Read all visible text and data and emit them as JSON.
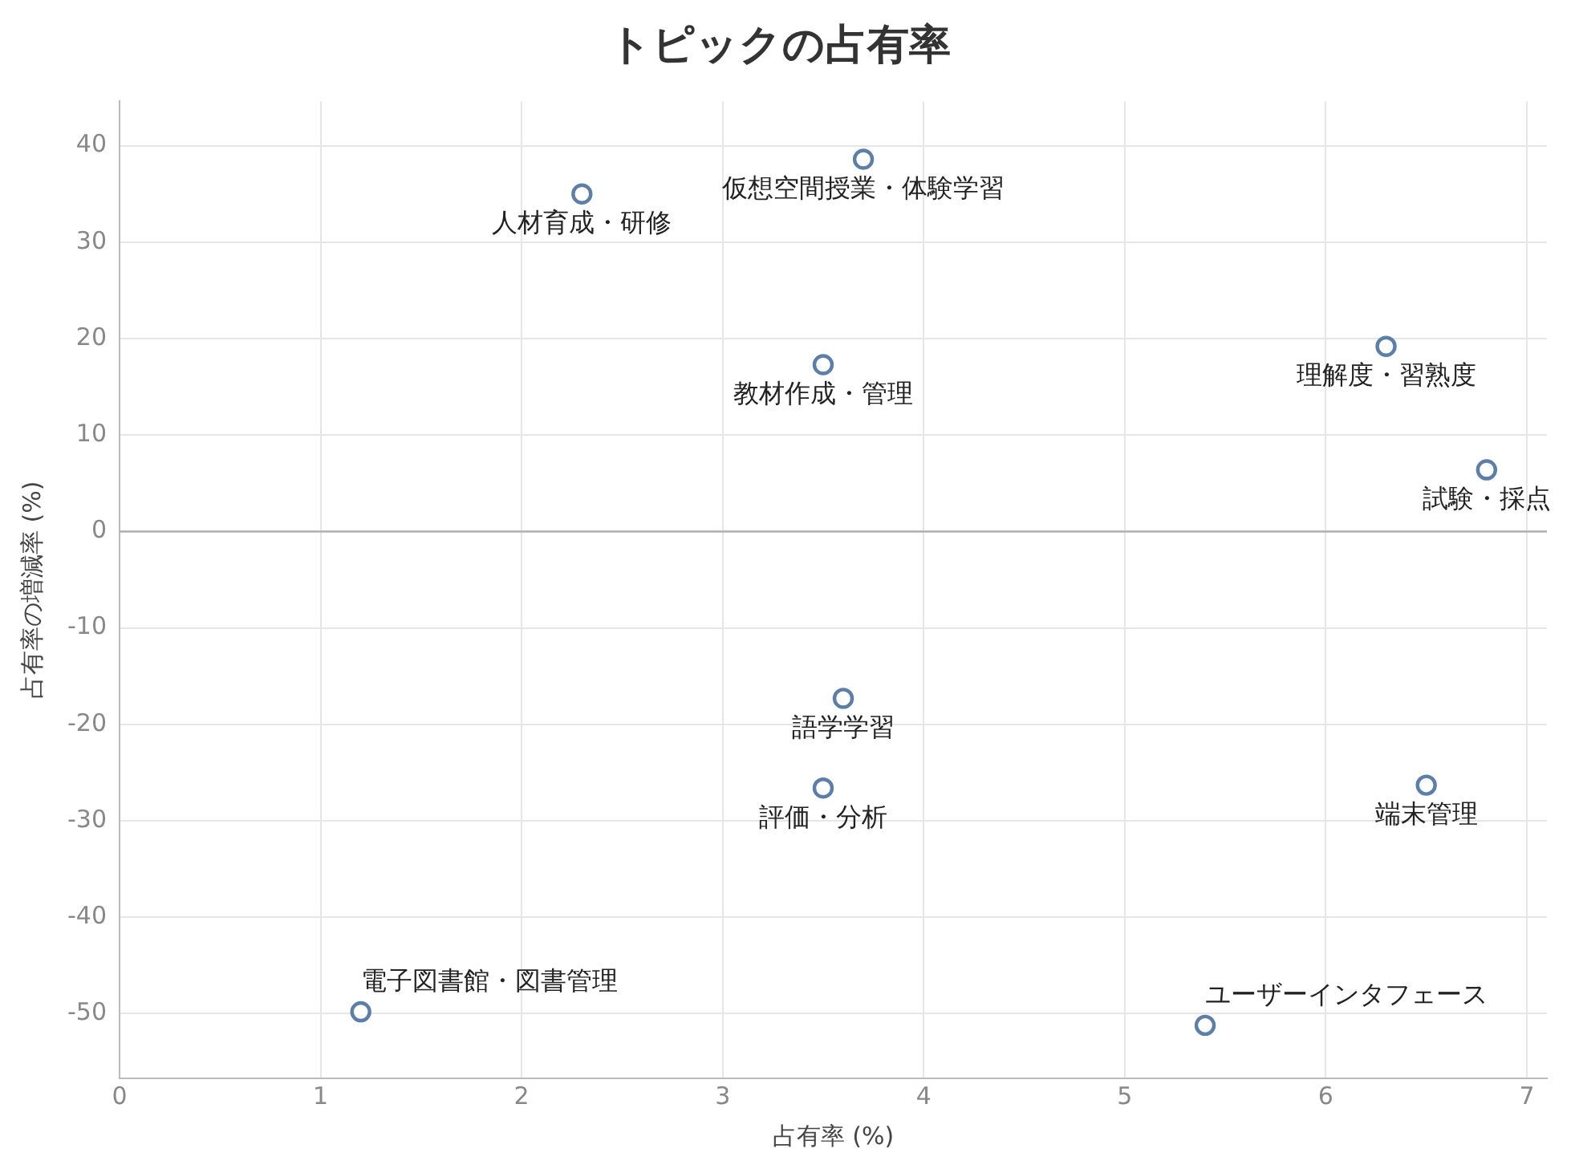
{
  "chart_data": {
    "type": "scatter",
    "title": "トピックの占有率",
    "xlabel": "占有率 (%)",
    "ylabel": "占有率の増減率 (%)",
    "series": [
      {
        "color": "#5b7fa8",
        "x": [
          2.3,
          3.7,
          3.5,
          6.3,
          6.8,
          3.6,
          3.5,
          6.5,
          1.2,
          5.4
        ],
        "values": [
          35,
          38.6,
          17.3,
          19.2,
          6.4,
          -17.3,
          -26.6,
          -26.3,
          -49.8,
          -51.2
        ]
      }
    ],
    "annotations": [
      {
        "text": "人材育成・研修",
        "x": 2.3,
        "y": 35
      },
      {
        "text": "仮想空間授業・体験学習",
        "x": 3.7,
        "y": 38.6
      },
      {
        "text": "教材作成・管理",
        "x": 3.5,
        "y": 17.3
      },
      {
        "text": "理解度・習熟度",
        "x": 6.3,
        "y": 19.2
      },
      {
        "text": "試験・採点",
        "x": 6.8,
        "y": 6.4
      },
      {
        "text": "語学学習",
        "x": 3.6,
        "y": -17.3
      },
      {
        "text": "評価・分析",
        "x": 3.5,
        "y": -26.6
      },
      {
        "text": "端末管理",
        "x": 6.5,
        "y": -26.3
      },
      {
        "text": "電子図書館・図書管理",
        "x": 1.2,
        "y": -49.8
      },
      {
        "text": "ユーザーインタフェース",
        "x": 5.4,
        "y": -51.2
      }
    ],
    "xlim": [
      0,
      7.1
    ],
    "xticks": [
      0,
      1,
      2,
      3,
      4,
      5,
      6,
      7
    ],
    "ylim": [
      -56.7,
      44.6
    ],
    "yticks": [
      -50,
      -40,
      -30,
      -20,
      -10,
      0,
      10,
      20,
      30,
      40
    ],
    "ref_lines": [
      {
        "axis": "y",
        "value": 0,
        "color": "#b0b0b0"
      }
    ],
    "grid": true,
    "legend": false,
    "marker": "circle"
  }
}
